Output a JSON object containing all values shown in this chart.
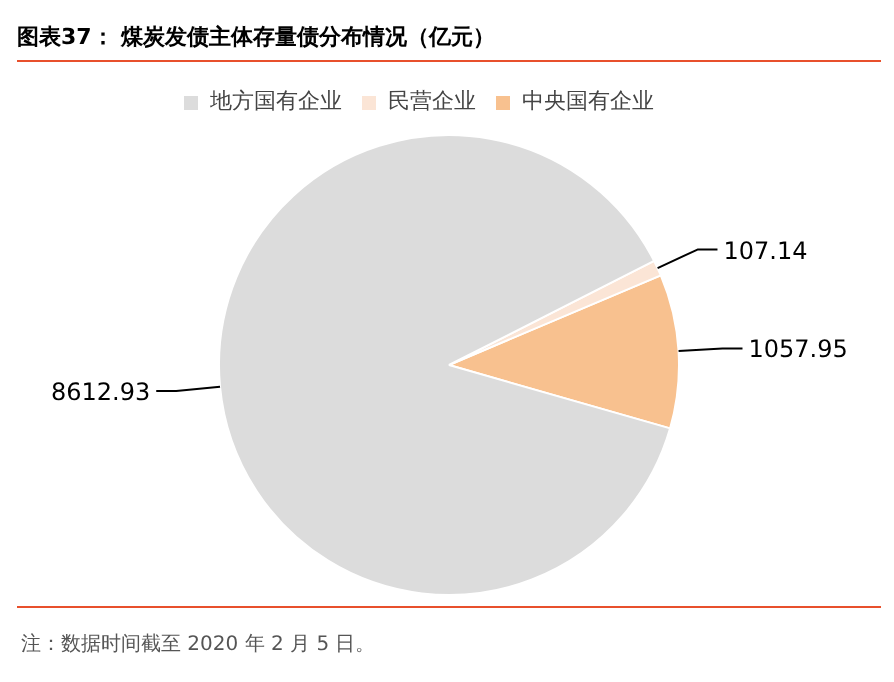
{
  "chart_data": {
    "type": "pie",
    "title": "图表37：  煤炭发债主体存量债分布情况（亿元）",
    "categories": [
      "地方国有企业",
      "民营企业",
      "中央国有企业"
    ],
    "values": [
      8612.93,
      107.14,
      1057.95
    ],
    "colors": [
      "#dcdcdc",
      "#fbe5d6",
      "#f8c18f"
    ],
    "data_labels": true,
    "legend": "top",
    "annotations": [
      "注：数据时间截至 2020 年 2 月 5 日。"
    ]
  }
}
